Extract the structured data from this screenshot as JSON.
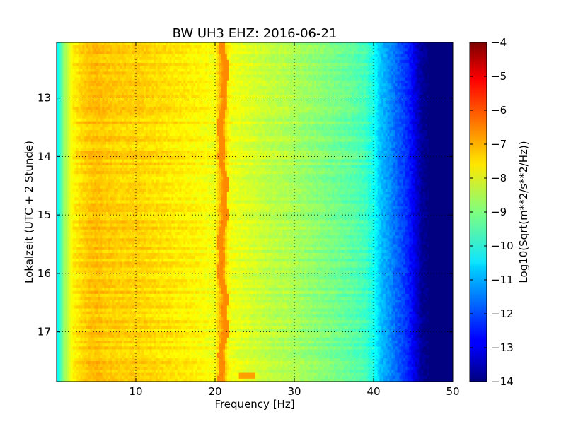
{
  "chart_data": {
    "type": "heatmap",
    "title": "BW UH3 EHZ: 2016-06-21",
    "xlabel": "Frequency [Hz]",
    "ylabel": "Lokalzeit (UTC + 2 Stunde)",
    "xlim": [
      0,
      50
    ],
    "ylim": [
      12.05,
      17.85
    ],
    "y_inverted": true,
    "x_ticks": [
      10,
      20,
      30,
      40,
      50
    ],
    "y_ticks": [
      13,
      14,
      15,
      16,
      17
    ],
    "grid": true,
    "colormap": "jet",
    "colorbar": {
      "label": "Log10(Sqrt(m**2/s**2/Hz))",
      "min": -14,
      "max": -4,
      "ticks": [
        -4,
        -5,
        -6,
        -7,
        -8,
        -9,
        -10,
        -11,
        -12,
        -13,
        -14
      ]
    },
    "spectrum_profile": {
      "frequency_hz": [
        0,
        0.5,
        1,
        2,
        3,
        4,
        5,
        6,
        8,
        10,
        12,
        14,
        16,
        18,
        19,
        20,
        20.5,
        21,
        21.5,
        22,
        23,
        24,
        25,
        27,
        29,
        31,
        33,
        35,
        37,
        39,
        40,
        41,
        42,
        43,
        44,
        45,
        46,
        47,
        50
      ],
      "level": [
        -10.4,
        -9.6,
        -8.7,
        -7.7,
        -7.4,
        -7.2,
        -7.1,
        -7.2,
        -7.3,
        -7.3,
        -7.4,
        -7.5,
        -7.6,
        -7.7,
        -7.8,
        -7.9,
        -7.2,
        -6.6,
        -7.6,
        -7.9,
        -8.0,
        -8.1,
        -8.2,
        -8.4,
        -8.5,
        -8.7,
        -8.9,
        -9.1,
        -9.3,
        -9.6,
        -10.1,
        -10.9,
        -11.3,
        -11.8,
        -12.2,
        -12.8,
        -13.7,
        -14.0,
        -14.0
      ]
    },
    "persistent_line_hz": 21,
    "brief_feature": {
      "frequency_hz": 24,
      "time": 17.75,
      "level": -6.8
    }
  },
  "colors": {
    "background": "#ffffff",
    "axes_edge": "#000000",
    "grid": "#000000"
  }
}
